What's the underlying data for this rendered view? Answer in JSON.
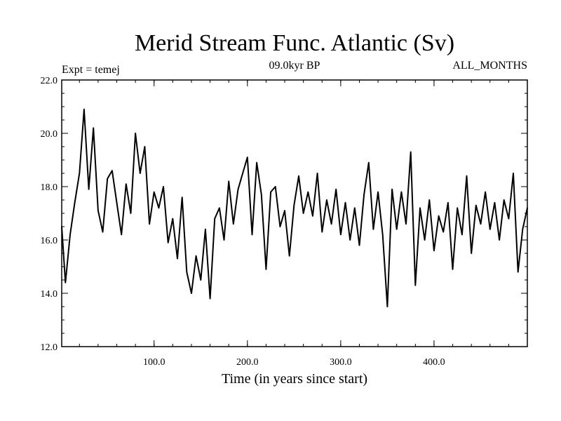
{
  "chart_data": {
    "type": "line",
    "title": "Merid Stream Func. Atlantic (Sv)",
    "subtitle": "09.0kyr BP",
    "left_note": "Expt = temej",
    "right_note": "ALL_MONTHS",
    "xlabel": "Time (in years since start)",
    "ylabel": "",
    "xlim": [
      1,
      500
    ],
    "ylim": [
      12.0,
      22.0
    ],
    "xticks": [
      100,
      200,
      300,
      400
    ],
    "xtick_labels": [
      "100.0",
      "200.0",
      "300.0",
      "400.0"
    ],
    "yticks": [
      12,
      14,
      16,
      18,
      20,
      22
    ],
    "ytick_labels": [
      "12.0",
      "14.0",
      "16.0",
      "18.0",
      "20.0",
      "22.0"
    ],
    "grid": false,
    "series": [
      {
        "name": "Meridional stream function",
        "color": "#000000",
        "x": [
          1,
          5,
          10,
          15,
          20,
          25,
          30,
          35,
          40,
          45,
          50,
          55,
          60,
          65,
          70,
          75,
          80,
          85,
          90,
          95,
          100,
          105,
          110,
          115,
          120,
          125,
          130,
          135,
          140,
          145,
          150,
          155,
          160,
          165,
          170,
          175,
          180,
          185,
          190,
          195,
          200,
          205,
          210,
          215,
          220,
          225,
          230,
          235,
          240,
          245,
          250,
          255,
          260,
          265,
          270,
          275,
          280,
          285,
          290,
          295,
          300,
          305,
          310,
          315,
          320,
          325,
          330,
          335,
          340,
          345,
          350,
          355,
          360,
          365,
          370,
          375,
          380,
          385,
          390,
          395,
          400,
          405,
          410,
          415,
          420,
          425,
          430,
          435,
          440,
          445,
          450,
          455,
          460,
          465,
          470,
          475,
          480,
          485,
          490,
          495,
          500
        ],
        "values": [
          16.5,
          14.4,
          16.2,
          17.4,
          18.5,
          20.9,
          17.9,
          20.2,
          17.1,
          16.3,
          18.3,
          18.6,
          17.4,
          16.2,
          18.1,
          17.0,
          20.0,
          18.5,
          19.5,
          16.6,
          17.8,
          17.2,
          18.0,
          15.9,
          16.8,
          15.3,
          17.6,
          14.8,
          14.0,
          15.4,
          14.5,
          16.4,
          13.8,
          16.8,
          17.2,
          16.0,
          18.2,
          16.6,
          17.9,
          18.5,
          19.1,
          16.2,
          18.9,
          17.7,
          14.9,
          17.8,
          18.0,
          16.5,
          17.1,
          15.4,
          17.3,
          18.4,
          17.0,
          17.8,
          16.9,
          18.5,
          16.3,
          17.5,
          16.6,
          17.9,
          16.2,
          17.4,
          16.0,
          17.2,
          15.8,
          17.7,
          18.9,
          16.4,
          17.8,
          16.2,
          13.5,
          17.9,
          16.4,
          17.8,
          16.6,
          19.3,
          14.3,
          17.2,
          16.0,
          17.5,
          15.6,
          16.9,
          16.3,
          17.4,
          14.9,
          17.2,
          16.2,
          18.4,
          15.5,
          17.3,
          16.6,
          17.8,
          16.4,
          17.4,
          16.0,
          17.5,
          16.8,
          18.5,
          14.8,
          16.4,
          17.2
        ]
      }
    ]
  }
}
